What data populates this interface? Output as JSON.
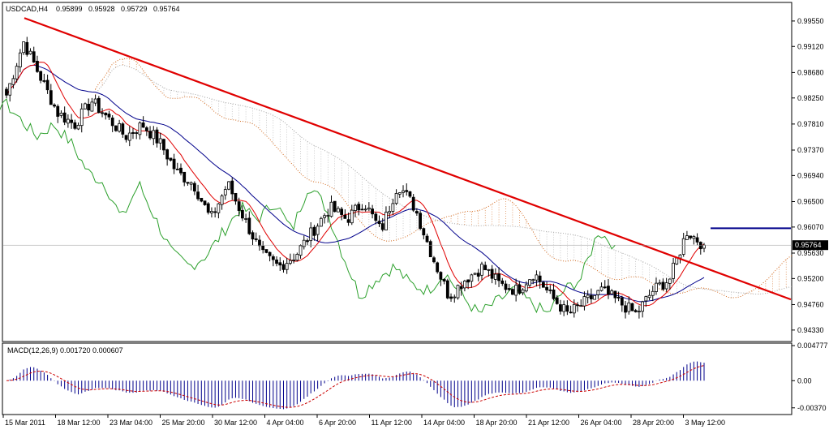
{
  "header": {
    "symbol": "USDCAD,H4",
    "ohlc": [
      "0.95899",
      "0.95928",
      "0.95729",
      "0.95764"
    ]
  },
  "price_axis": {
    "ticks": [
      "0.99550",
      "0.99120",
      "0.98680",
      "0.98250",
      "0.97810",
      "0.97370",
      "0.96940",
      "0.96500",
      "0.96070",
      "0.95630",
      "0.95200",
      "0.94760",
      "0.94330"
    ],
    "current_price": "0.95764"
  },
  "macd_panel": {
    "label": "MACD(12,26,9) 0.001720 0.000607",
    "ticks": [
      "0.004777",
      "0.00",
      "-0.00370"
    ]
  },
  "time_axis": {
    "labels": [
      "15 Mar 2011",
      "18 Mar 12:00",
      "23 Mar 04:00",
      "25 Mar 20:00",
      "30 Mar 12:00",
      "4 Apr 04:00",
      "6 Apr 20:00",
      "11 Apr 12:00",
      "14 Apr 04:00",
      "18 Apr 20:00",
      "21 Apr 12:00",
      "26 Apr 04:00",
      "28 Apr 20:00",
      "3 May 12:00"
    ]
  },
  "colors": {
    "bull_candle": "#ffffff",
    "bear_candle": "#000000",
    "trendline": "#e00000",
    "horizontal_line": "#00008b",
    "tenkan": "#e00000",
    "kijun": "#00008b",
    "chikou": "#2ca02c",
    "cloud": "#d2691e",
    "cloud_alt": "#a9a9a9",
    "macd_hist": "#00008b",
    "macd_signal": "#cc0000"
  },
  "chart_data": {
    "type": "candlestick",
    "symbol": "USDCAD",
    "timeframe": "H4",
    "ylim": [
      0.9415,
      0.9985
    ],
    "x": [
      "15 Mar 2011",
      "18 Mar 12:00",
      "23 Mar 04:00",
      "25 Mar 20:00",
      "30 Mar 12:00",
      "4 Apr 04:00",
      "6 Apr 20:00",
      "11 Apr 12:00",
      "14 Apr 04:00",
      "18 Apr 20:00",
      "21 Apr 12:00",
      "26 Apr 04:00",
      "28 Apr 20:00",
      "3 May 12:00"
    ],
    "close_path": [
      0.983,
      0.992,
      0.986,
      0.98,
      0.978,
      0.982,
      0.979,
      0.976,
      0.978,
      0.975,
      0.97,
      0.968,
      0.962,
      0.968,
      0.962,
      0.956,
      0.954,
      0.956,
      0.96,
      0.964,
      0.962,
      0.965,
      0.96,
      0.968,
      0.964,
      0.956,
      0.949,
      0.952,
      0.954,
      0.951,
      0.95,
      0.953,
      0.949,
      0.946,
      0.948,
      0.95,
      0.948,
      0.946,
      0.95,
      0.952,
      0.96,
      0.9576
    ],
    "trendline": {
      "start": [
        "15 Mar 2011",
        0.996
      ],
      "end": [
        "3 May 12:00",
        0.954
      ]
    },
    "horizontal_level": 0.9605,
    "current_price": 0.95764,
    "macd": {
      "fast": 12,
      "slow": 26,
      "signal": 9,
      "macd_value": 0.00172,
      "signal_value": 0.000607,
      "ylim": [
        -0.0045,
        0.005
      ]
    },
    "indicators": [
      "Ichimoku",
      "MACD(12,26,9)"
    ]
  }
}
